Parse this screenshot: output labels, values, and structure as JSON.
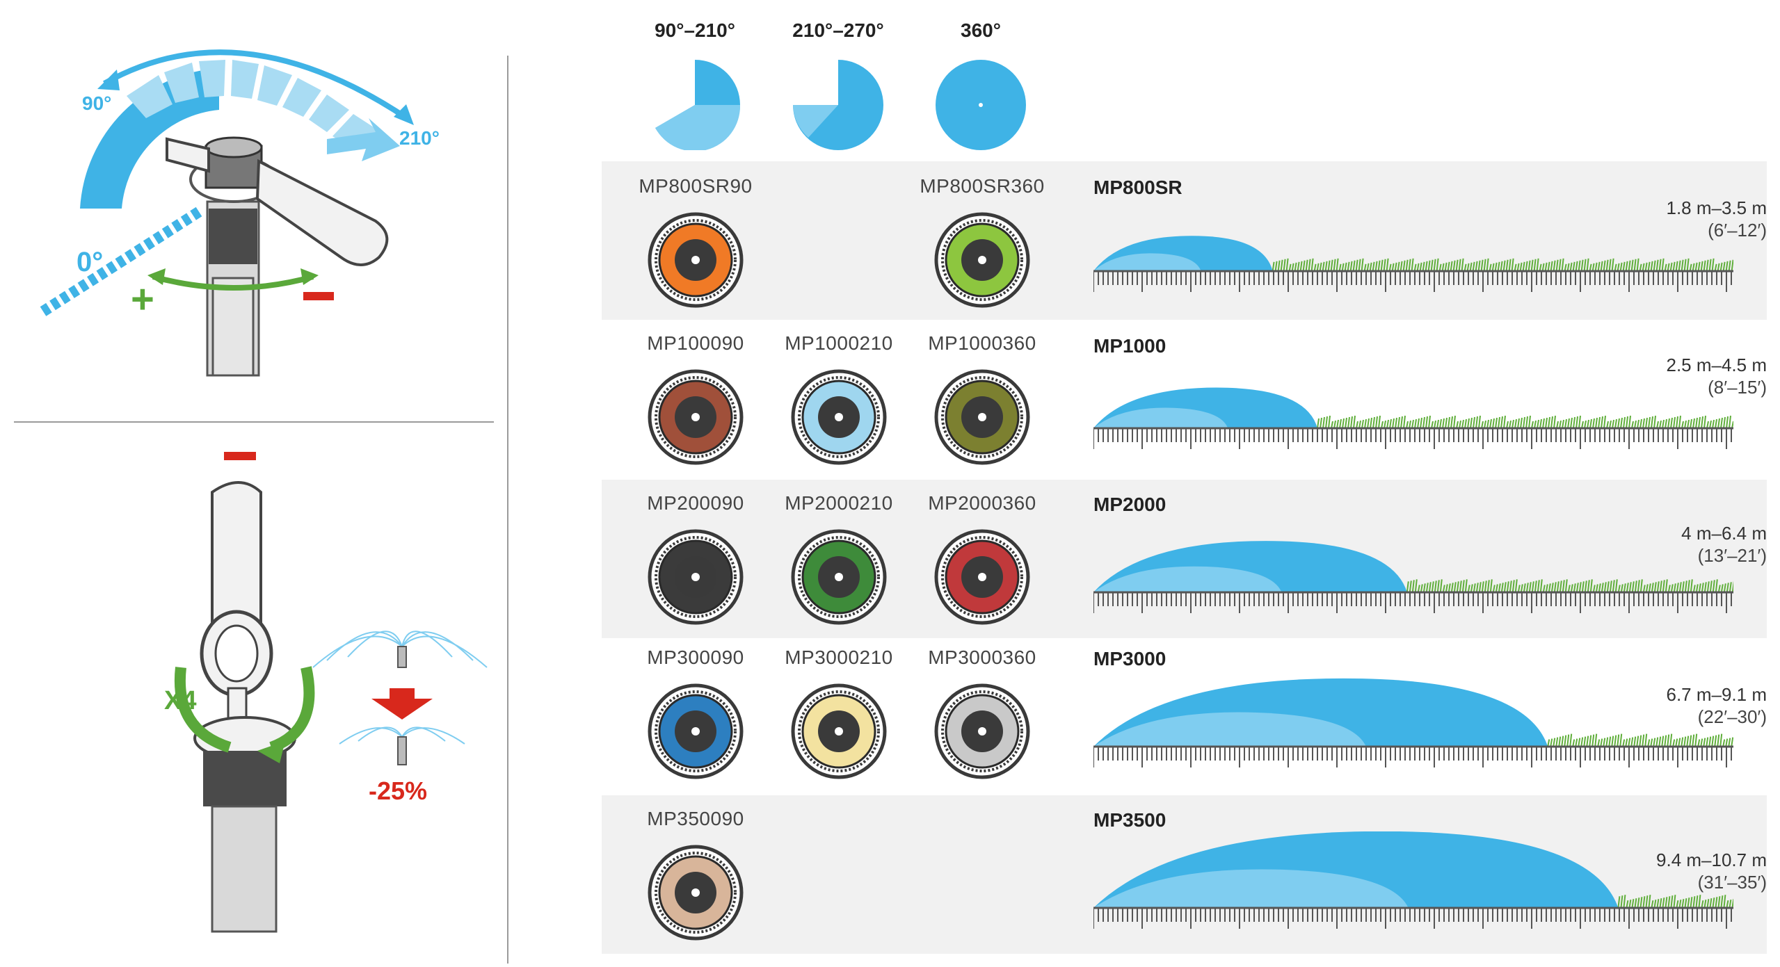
{
  "colors": {
    "spray_blue": "#3fb3e6",
    "spray_light": "#7fcdf0",
    "grass": "#5fae3a",
    "minus_red": "#d8281c",
    "plus_green": "#5aa83a",
    "band": "#f1f1f1"
  },
  "illustration": {
    "angle_90": "90°",
    "angle_210": "210°",
    "angle_0": "0°",
    "plus": "+",
    "minus_top": "−",
    "minus_bottom": "−",
    "turns": "X4",
    "reduction": "-25%"
  },
  "arc_headers": [
    {
      "label": "90°–210°",
      "icon": "arc-90-210-icon"
    },
    {
      "label": "210°–270°",
      "icon": "arc-210-270-icon"
    },
    {
      "label": "360°",
      "icon": "arc-360-icon"
    }
  ],
  "series": [
    {
      "name": "MP800SR",
      "range_m": "1.8 m–3.5 m",
      "range_ft": "(6′–12′)",
      "throw_fraction": 0.28,
      "nozzles": [
        {
          "label": "MP800SR90",
          "color": "#f07a26"
        },
        {
          "label": "",
          "color": ""
        },
        {
          "label": "MP800SR360",
          "color": "#8dc63f"
        }
      ]
    },
    {
      "name": "MP1000",
      "range_m": "2.5 m–4.5 m",
      "range_ft": "(8′–15′)",
      "throw_fraction": 0.35,
      "nozzles": [
        {
          "label": "MP100090",
          "color": "#a0503a"
        },
        {
          "label": "MP1000210",
          "color": "#9fd6ef"
        },
        {
          "label": "MP1000360",
          "color": "#7c8030"
        }
      ]
    },
    {
      "name": "MP2000",
      "range_m": "4 m–6.4 m",
      "range_ft": "(13′–21′)",
      "throw_fraction": 0.49,
      "nozzles": [
        {
          "label": "MP200090",
          "color": "#3b3b3b"
        },
        {
          "label": "MP2000210",
          "color": "#3e8b3a"
        },
        {
          "label": "MP2000360",
          "color": "#c0393b"
        }
      ]
    },
    {
      "name": "MP3000",
      "range_m": "6.7 m–9.1 m",
      "range_ft": "(22′–30′)",
      "throw_fraction": 0.71,
      "nozzles": [
        {
          "label": "MP300090",
          "color": "#2d7fc0"
        },
        {
          "label": "MP3000210",
          "color": "#f3e2a0"
        },
        {
          "label": "MP3000360",
          "color": "#c9c9c9"
        }
      ]
    },
    {
      "name": "MP3500",
      "range_m": "9.4 m–10.7 m",
      "range_ft": "(31′–35′)",
      "throw_fraction": 0.82,
      "nozzles": [
        {
          "label": "MP350090",
          "color": "#d8b59a"
        },
        {
          "label": "",
          "color": ""
        },
        {
          "label": "",
          "color": ""
        }
      ]
    }
  ]
}
